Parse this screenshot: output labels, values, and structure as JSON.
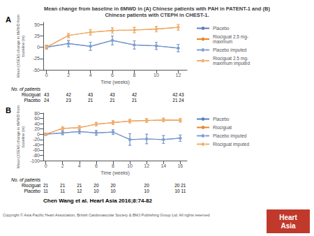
{
  "title": "Mean change from baseline in 6MWD in (A) Chinese patients with PAH in PATENT-1 and (B)\nChinese patients with CTEPH in CHEST-1.",
  "annotations": [
    "Chen Wang et al. Heart Asia 2016;8:74-82",
    "Copyright © Asia Pacific Heart Association, British Cardiovascular Society & BMJ Publishing Group Ltd. All rights reserved"
  ],
  "badge": {
    "text": "Heart\nAsia",
    "color": "#c0392b"
  },
  "chart_data": [
    {
      "type": "line",
      "panel": "A",
      "xlabel": "Time (weeks)",
      "ylabel": "Mean (±SEM) change in 6MWD from\nbaseline (m)",
      "x": [
        0,
        2,
        4,
        6,
        8,
        10,
        12
      ],
      "xlim": [
        -0.3,
        12.8
      ],
      "xticks": [
        0,
        2,
        4,
        6,
        8,
        10,
        12
      ],
      "ylim": [
        -50,
        55
      ],
      "yticks": [
        -50,
        -25,
        0,
        25,
        50
      ],
      "grid": false,
      "legend": "right",
      "series": [
        {
          "name": "Placebo",
          "color": "#5b7fbe",
          "marker": "circle",
          "line_style": "solid",
          "values": [
            0,
            8,
            2,
            15,
            5,
            3,
            -2
          ],
          "errors": [
            4,
            7,
            9,
            10,
            9,
            8,
            8
          ]
        },
        {
          "name": "Riociguat 2.5 mg-\nmaximum",
          "color": "#e8882a",
          "marker": "circle",
          "line_style": "solid",
          "values": [
            0,
            26,
            33,
            37,
            38,
            40,
            44
          ],
          "errors": [
            4,
            5,
            6,
            6,
            6,
            6,
            6
          ]
        },
        {
          "name": "Placebo imputed",
          "color": "#7fa0d0",
          "marker": "circle",
          "line_style": "dashed",
          "values": [
            0,
            8,
            2,
            15,
            5,
            3,
            -2
          ],
          "errors": [
            4,
            7,
            9,
            10,
            9,
            8,
            8
          ]
        },
        {
          "name": "Riociguat 2.5 mg-\nmaximum imputed",
          "color": "#f0b070",
          "marker": "circle",
          "line_style": "dashed",
          "values": [
            0,
            26,
            33,
            37,
            38,
            40,
            44
          ],
          "errors": [
            4,
            5,
            6,
            6,
            6,
            6,
            6
          ]
        }
      ],
      "table": {
        "title": "No. of patients",
        "rows": [
          {
            "name": "Riociguat",
            "values": [
              "43",
              "42",
              "43",
              "43",
              "42",
              null,
              "42 43"
            ]
          },
          {
            "name": "Placebo",
            "values": [
              "24",
              "23",
              "21",
              "21",
              "21",
              null,
              "21 24"
            ]
          }
        ]
      }
    },
    {
      "type": "line",
      "panel": "B",
      "xlabel": "Time (weeks)",
      "ylabel": "Mean (±SEM) change in 6MWD from\nbaseline (m)",
      "x": [
        0,
        2,
        4,
        6,
        8,
        10,
        12,
        14,
        16
      ],
      "xlim": [
        -0.3,
        16.8
      ],
      "xticks": [
        0,
        2,
        4,
        6,
        8,
        10,
        12,
        14,
        16
      ],
      "ylim": [
        -100,
        80
      ],
      "yticks": [
        -100,
        -80,
        -60,
        -40,
        -20,
        0,
        20,
        40,
        60,
        80
      ],
      "grid": false,
      "legend": "right",
      "series": [
        {
          "name": "Placebo",
          "color": "#5b7fbe",
          "marker": "circle",
          "line_style": "solid",
          "values": [
            0,
            5,
            10,
            5,
            8,
            -20,
            -18,
            -20,
            -15
          ],
          "errors": [
            4,
            7,
            8,
            9,
            9,
            22,
            18,
            15,
            12
          ]
        },
        {
          "name": "Riociguat",
          "color": "#e8882a",
          "marker": "circle",
          "line_style": "solid",
          "values": [
            0,
            22,
            25,
            38,
            44,
            50,
            52,
            54,
            53
          ],
          "errors": [
            4,
            6,
            7,
            7,
            7,
            7,
            7,
            7,
            7
          ]
        },
        {
          "name": "Placebo imputed",
          "color": "#7fa0d0",
          "marker": "circle",
          "line_style": "dashed",
          "values": [
            0,
            5,
            10,
            5,
            8,
            -20,
            -18,
            -20,
            -15
          ],
          "errors": [
            4,
            7,
            8,
            9,
            9,
            22,
            18,
            15,
            12
          ]
        },
        {
          "name": "Riociguat imputed",
          "color": "#f0b070",
          "marker": "circle",
          "line_style": "dashed",
          "values": [
            0,
            22,
            25,
            38,
            44,
            50,
            52,
            54,
            53
          ],
          "errors": [
            4,
            6,
            7,
            7,
            7,
            7,
            7,
            7,
            7
          ]
        }
      ],
      "table": {
        "title": "No. of patients",
        "rows": [
          {
            "name": "Riociguat",
            "values": [
              "21",
              "21",
              "21",
              "20",
              "20",
              null,
              "20",
              null,
              "20 21"
            ]
          },
          {
            "name": "Placebo",
            "values": [
              "11",
              "11",
              "12",
              "10",
              "10",
              null,
              "10",
              null,
              "10 11"
            ]
          }
        ]
      }
    }
  ]
}
